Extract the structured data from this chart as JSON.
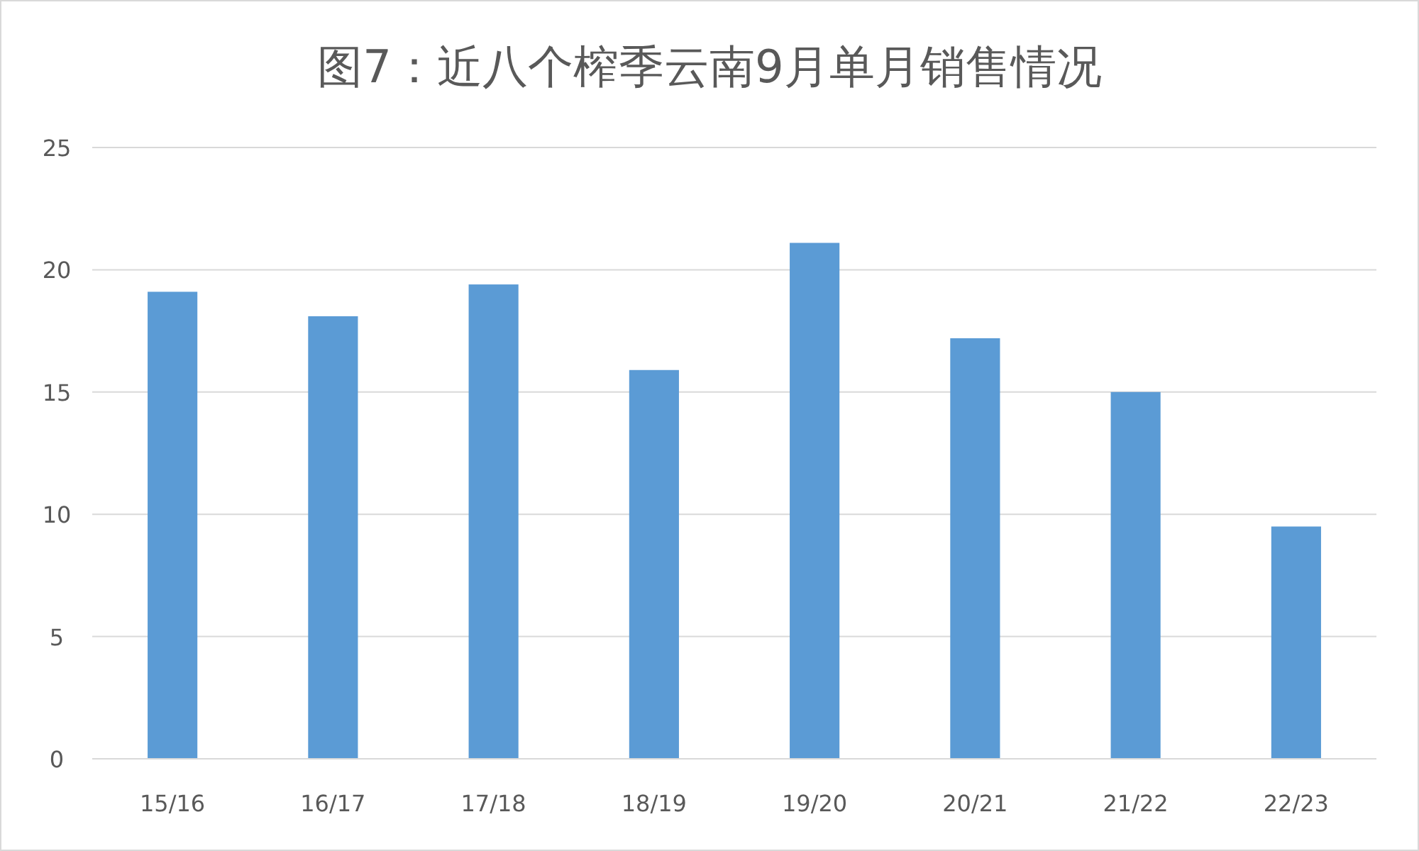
{
  "chart_data": {
    "type": "bar",
    "title": "图7：近八个榨季云南9月单月销售情况",
    "categories": [
      "15/16",
      "16/17",
      "17/18",
      "18/19",
      "19/20",
      "20/21",
      "21/22",
      "22/23"
    ],
    "values": [
      19.1,
      18.1,
      19.4,
      15.9,
      21.1,
      17.2,
      15.0,
      9.5
    ],
    "color": "#5b9bd5",
    "ylim": [
      0,
      25
    ],
    "yticks": [
      0,
      5,
      10,
      15,
      20,
      25
    ],
    "grid": "y"
  }
}
